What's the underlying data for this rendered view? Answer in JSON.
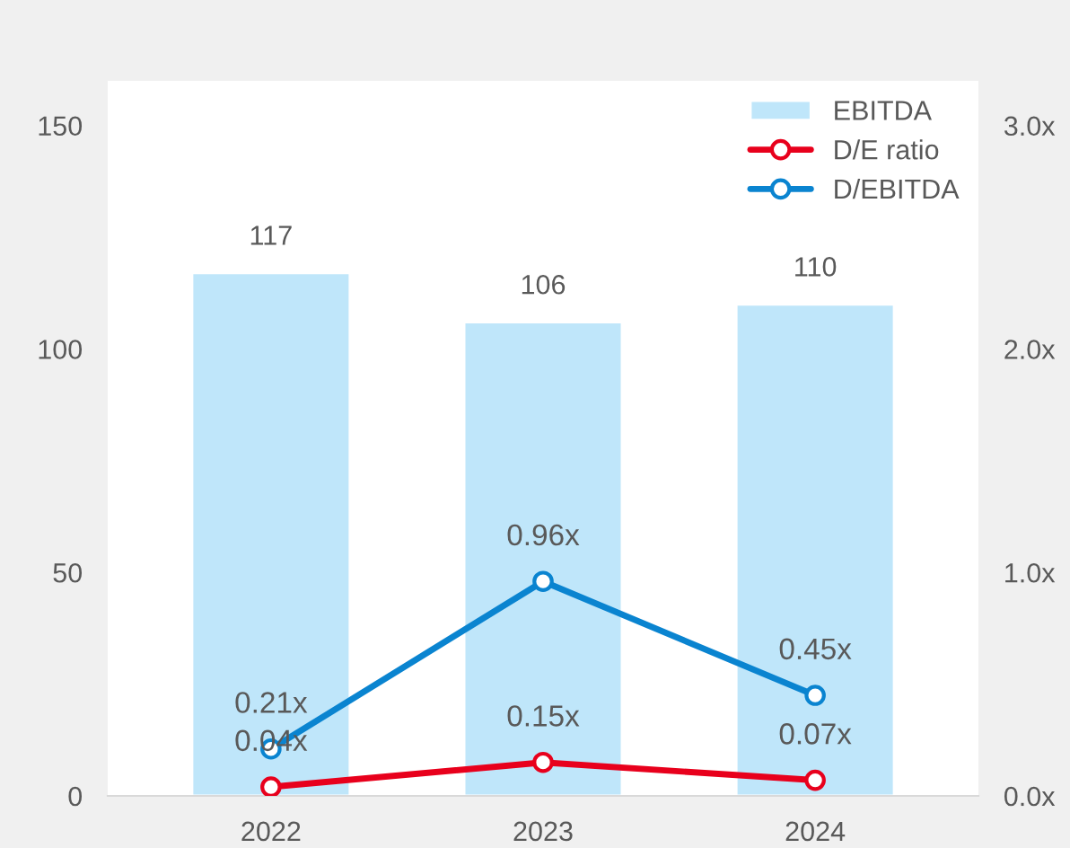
{
  "chart_data": {
    "type": "bar",
    "categories": [
      "2022",
      "2023",
      "2024"
    ],
    "series": [
      {
        "name": "EBITDA",
        "color": "#bfe6fa",
        "values": [
          117,
          106,
          110
        ],
        "value_labels": [
          "117",
          "106",
          "110"
        ]
      },
      {
        "name": "D/E ratio",
        "type": "line",
        "axis": "y2",
        "color": "#e8001c",
        "values": [
          0.04,
          0.15,
          0.07
        ],
        "value_labels": [
          "0.04x",
          "0.15x",
          "0.07x"
        ]
      },
      {
        "name": "D/EBITDA",
        "type": "line",
        "axis": "y2",
        "color": "#0a84d0",
        "values": [
          0.21,
          0.96,
          0.45
        ],
        "value_labels": [
          "0.21x",
          "0.96x",
          "0.45x"
        ]
      }
    ],
    "ylim": [
      0,
      160
    ],
    "yticks": [
      0,
      50,
      100,
      150
    ],
    "y2lim": [
      0,
      3.2
    ],
    "y2ticks": [
      {
        "value": 0,
        "label": "0.0x"
      },
      {
        "value": 1,
        "label": "1.0x"
      },
      {
        "value": 2,
        "label": "2.0x"
      },
      {
        "value": 3,
        "label": "3.0x"
      }
    ],
    "legend": "top right",
    "marker": "circle",
    "line_style": "solid",
    "grid": false
  }
}
